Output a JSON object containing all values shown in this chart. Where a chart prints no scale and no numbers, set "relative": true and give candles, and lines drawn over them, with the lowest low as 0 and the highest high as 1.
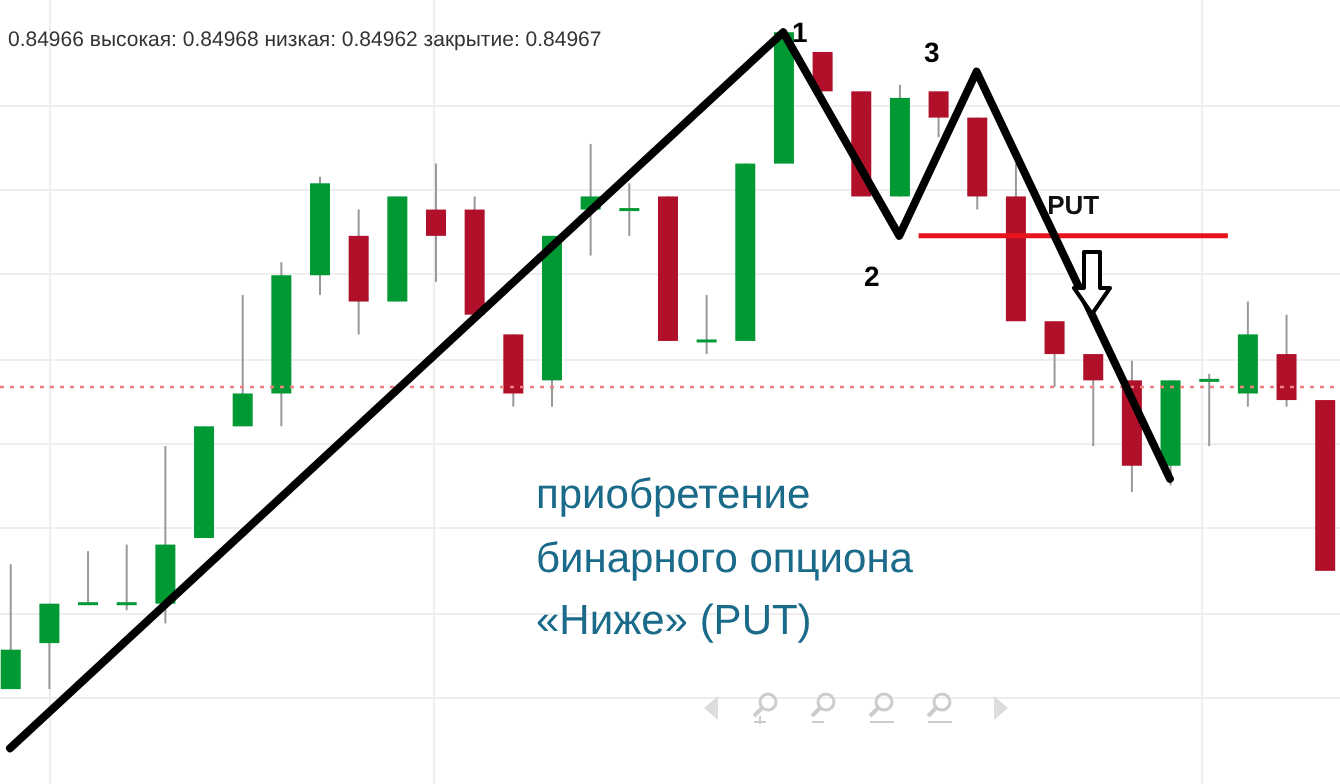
{
  "chart_data": {
    "type": "candlestick",
    "title": "0.84966 высокая: 0.84968 низкая: 0.84962 закрытие: 0.84967",
    "relative": true,
    "grid": true,
    "legend": false,
    "categories": [
      null,
      null,
      null,
      null,
      null,
      null,
      null,
      null,
      null,
      null,
      null,
      null,
      null,
      null,
      null,
      null,
      null,
      null,
      null,
      null,
      null,
      null,
      null,
      null,
      null,
      null,
      null,
      null,
      null,
      null,
      null,
      null,
      null,
      null,
      null
    ],
    "ohlc": [
      [
        0,
        0.19,
        0,
        0.06
      ],
      [
        0.07,
        0.13,
        0,
        0.13
      ],
      [
        0.13,
        0.21,
        0.13,
        0.13
      ],
      [
        0.13,
        0.22,
        0.12,
        0.13
      ],
      [
        0.13,
        0.37,
        0.1,
        0.22
      ],
      [
        0.23,
        0.4,
        0.23,
        0.4
      ],
      [
        0.4,
        0.6,
        0.4,
        0.45
      ],
      [
        0.45,
        0.65,
        0.4,
        0.63
      ],
      [
        0.63,
        0.78,
        0.6,
        0.77
      ],
      [
        0.69,
        0.73,
        0.54,
        0.59
      ],
      [
        0.59,
        0.75,
        0.59,
        0.75
      ],
      [
        0.73,
        0.8,
        0.62,
        0.69
      ],
      [
        0.73,
        0.75,
        0.57,
        0.57
      ],
      [
        0.54,
        0.54,
        0.43,
        0.45
      ],
      [
        0.47,
        0.69,
        0.43,
        0.69
      ],
      [
        0.73,
        0.83,
        0.66,
        0.75
      ],
      [
        0.73,
        0.77,
        0.69,
        0.73
      ],
      [
        0.75,
        0.75,
        0.53,
        0.53
      ],
      [
        0.53,
        0.6,
        0.51,
        0.53
      ],
      [
        0.53,
        0.8,
        0.53,
        0.8
      ],
      [
        0.8,
        1,
        0.8,
        1
      ],
      [
        0.97,
        0.97,
        0.91,
        0.91
      ],
      [
        0.91,
        0.91,
        0.75,
        0.75
      ],
      [
        0.75,
        0.92,
        0.75,
        0.9
      ],
      [
        0.91,
        0.91,
        0.84,
        0.87
      ],
      [
        0.87,
        0.87,
        0.73,
        0.75
      ],
      [
        0.75,
        0.8,
        0.56,
        0.56
      ],
      [
        0.56,
        0.56,
        0.46,
        0.51
      ],
      [
        0.51,
        0.51,
        0.37,
        0.47
      ],
      [
        0.47,
        0.5,
        0.3,
        0.34
      ],
      [
        0.34,
        0.47,
        0.31,
        0.47
      ],
      [
        0.47,
        0.48,
        0.37,
        0.47
      ],
      [
        0.45,
        0.59,
        0.43,
        0.54
      ],
      [
        0.51,
        0.57,
        0.43,
        0.44
      ],
      [
        0.44,
        0.44,
        0.18,
        0.18
      ]
    ],
    "colors": [
      "#009933",
      "#009933",
      "#009933",
      "#009933",
      "#009933",
      "#009933",
      "#009933",
      "#009933",
      "#009933",
      "#b0102a",
      "#009933",
      "#b0102a",
      "#b0102a",
      "#b0102a",
      "#009933",
      "#009933",
      "#009933",
      "#b0102a",
      "#009933",
      "#009933",
      "#009933",
      "#b0102a",
      "#b0102a",
      "#009933",
      "#b0102a",
      "#b0102a",
      "#b0102a",
      "#b0102a",
      "#b0102a",
      "#b0102a",
      "#009933",
      "#009933",
      "#009933",
      "#b0102a",
      "#b0102a"
    ],
    "series": [
      {
        "type": "line",
        "color": "#000000",
        "values": [
          -0.09,
          null,
          null,
          null,
          null,
          null,
          null,
          null,
          null,
          null,
          null,
          null,
          null,
          null,
          null,
          null,
          null,
          null,
          null,
          null,
          1,
          null,
          null,
          0.69,
          null,
          0.94,
          null,
          null,
          null,
          null,
          0.32,
          null,
          null,
          null,
          null
        ]
      }
    ],
    "ref_lines": [
      {
        "axis": "y",
        "value": 0.69,
        "label": "PUT",
        "color": "#e8141c",
        "line_style": "solid"
      },
      {
        "axis": "y",
        "value": 0.46,
        "color": "#f08080",
        "line_style": "dotted"
      }
    ],
    "annotations": [
      "1",
      "2",
      "3",
      "приобретение бинарного опциона «Ниже» (PUT)"
    ]
  }
}
